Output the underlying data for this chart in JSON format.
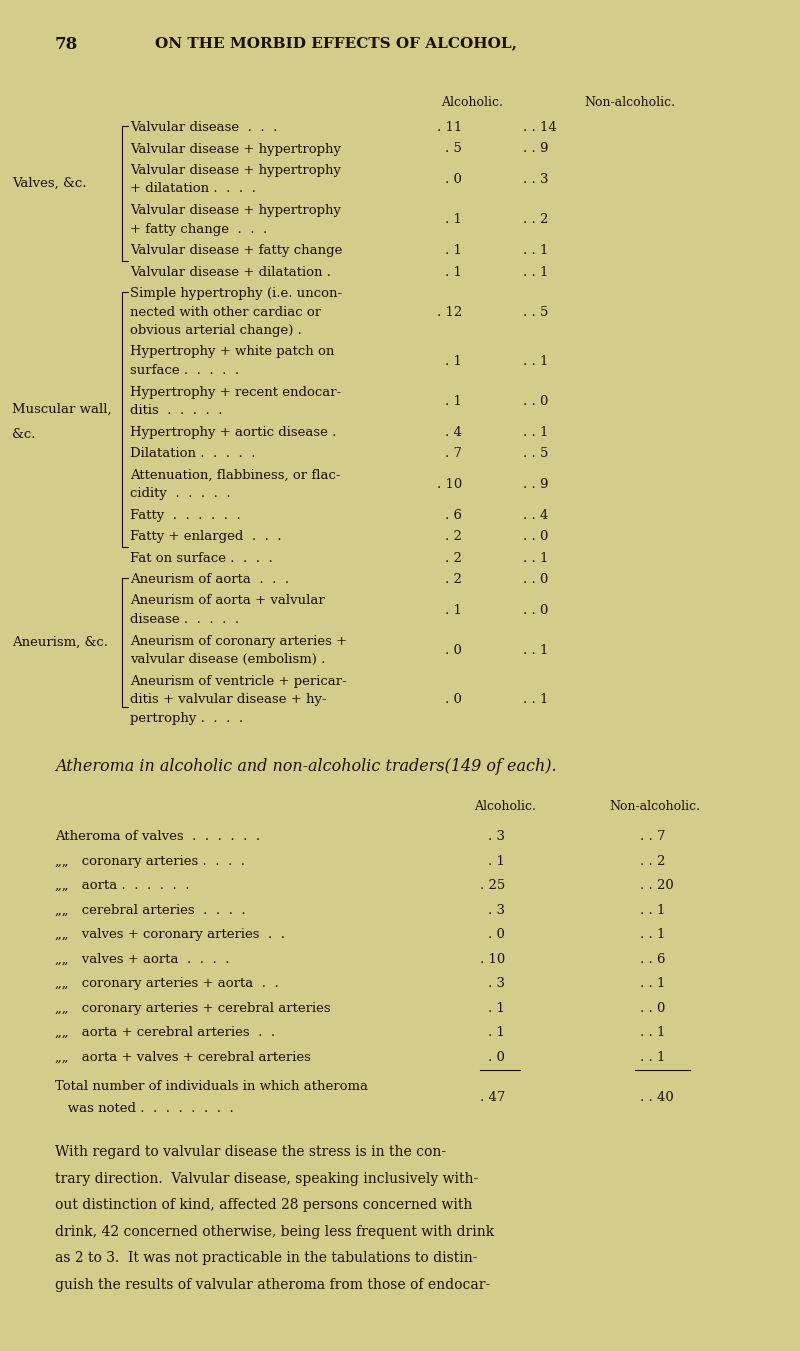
{
  "bg_color": "#d4cc8a",
  "page_number": "78",
  "header": "ON THE MORBID EFFECTS OF ALCOHOL,",
  "section1_label_lines": [
    [
      "Valves, &c.",
      "Muscular wall,",
      "&c.",
      "Aneurism, &c."
    ]
  ],
  "col_header_alcoholic": "Alcoholic.",
  "col_header_non_alcoholic": "Non-alcoholic.",
  "table1_rows": [
    {
      "label": [
        "Valvular disease  .  .  . "
      ],
      "alc": "11",
      "non_alc": "14"
    },
    {
      "label": [
        "Valvular disease + hypertrophy"
      ],
      "alc": "5",
      "non_alc": "9"
    },
    {
      "label": [
        "Valvular disease + hypertrophy",
        "+ dilatation .  .  .  ."
      ],
      "alc": "0",
      "non_alc": "3"
    },
    {
      "label": [
        "Valvular disease + hypertrophy",
        "+ fatty change  .  .  ."
      ],
      "alc": "1",
      "non_alc": "2"
    },
    {
      "label": [
        "Valvular disease + fatty change"
      ],
      "alc": "1",
      "non_alc": "1"
    },
    {
      "label": [
        "Valvular disease + dilatation ."
      ],
      "alc": "1",
      "non_alc": "1"
    },
    {
      "label": [
        "Simple hypertrophy (i.e. uncon-",
        "nected with other cardiac or",
        "obvious arterial change) ."
      ],
      "alc": "12",
      "non_alc": "5"
    },
    {
      "label": [
        "Hypertrophy + white patch on",
        "surface .  .  .  .  ."
      ],
      "alc": "1",
      "non_alc": "1"
    },
    {
      "label": [
        "Hypertrophy + recent endocar-",
        "ditis  .  .  .  .  ."
      ],
      "alc": "1",
      "non_alc": "0"
    },
    {
      "label": [
        "Hypertrophy + aortic disease ."
      ],
      "alc": "4",
      "non_alc": "1"
    },
    {
      "label": [
        "Dilatation .  .  .  .  ."
      ],
      "alc": "7",
      "non_alc": "5"
    },
    {
      "label": [
        "Attenuation, flabbiness, or flac-",
        "cidity  .  .  .  .  ."
      ],
      "alc": "10",
      "non_alc": "9"
    },
    {
      "label": [
        "Fatty  .  .  .  .  .  ."
      ],
      "alc": "6",
      "non_alc": "4"
    },
    {
      "label": [
        "Fatty + enlarged  .  .  ."
      ],
      "alc": "2",
      "non_alc": "0"
    },
    {
      "label": [
        "Fat on surface .  .  .  ."
      ],
      "alc": "2",
      "non_alc": "1"
    },
    {
      "label": [
        "Aneurism of aorta  .  .  ."
      ],
      "alc": "2",
      "non_alc": "0"
    },
    {
      "label": [
        "Aneurism of aorta + valvular",
        "disease .  .  .  .  ."
      ],
      "alc": "1",
      "non_alc": "0"
    },
    {
      "label": [
        "Aneurism of coronary arteries +",
        "valvular disease (embolism) ."
      ],
      "alc": "0",
      "non_alc": "1"
    },
    {
      "label": [
        "Aneurism of ventricle + pericar-",
        "ditis + valvular disease + hy-",
        "pertrophy .  .  .  ."
      ],
      "alc": "0",
      "non_alc": "1"
    }
  ],
  "section2_title": "Atheroma in alcoholic and non-alcoholic traders(149 of each).",
  "table2_col_header_alcoholic": "Alcoholic.",
  "table2_col_header_non_alcoholic": "Non-alcoholic.",
  "table2_rows": [
    {
      "label": "Atheroma of valves  .  .  .  .  .  . ",
      "alc": "3",
      "non_alc": "7"
    },
    {
      "label": "     coronary arteries .  .  .  . ",
      "alc": "1",
      "non_alc": "2"
    },
    {
      "label": "     aorta .  .  .  .  .  . ",
      "alc": "25",
      "non_alc": "20"
    },
    {
      "label": "     cerebral arteries  .  .  .  . ",
      "alc": "3",
      "non_alc": "1"
    },
    {
      "label": "     valves + coronary arteries  .  . ",
      "alc": "0",
      "non_alc": "1"
    },
    {
      "label": "     valves + aorta  .  .  .  . ",
      "alc": "10",
      "non_alc": "6"
    },
    {
      "label": "     coronary arteries + aorta  .  . ",
      "alc": "3",
      "non_alc": "1"
    },
    {
      "label": "     coronary arteries + cerebral arteries",
      "alc": "1",
      "non_alc": "0"
    },
    {
      "label": "     aorta + cerebral arteries  .  . ",
      "alc": "1",
      "non_alc": "1"
    },
    {
      "label": "     aorta + valves + cerebral arteries",
      "alc": "0",
      "non_alc": "1"
    }
  ],
  "table2_total_label": "Total number of individuals in which atheroma\n   was noted .  .  .  .  .  .  .  . ",
  "table2_total_alc": "47",
  "table2_total_non_alc": "40",
  "paragraph": "With regard to valvular disease the stress is in the con-\ntrary direction.  Valvular disease, speaking inclusively with-\nout distinction of kind, affected 28 persons concerned with\ndrink, 42 concerned otherwise, being less frequent with drink\nas 2 to 3.  It was not practicable in the tabulations to distin-\nguish the results of valvular atheroma from those of endocar-",
  "font_family": "serif",
  "text_color": "#1a1008",
  "font_size_header": 11,
  "font_size_body": 9.5,
  "font_size_page_num": 12,
  "font_size_section2_title": 11.5,
  "font_size_para": 10
}
